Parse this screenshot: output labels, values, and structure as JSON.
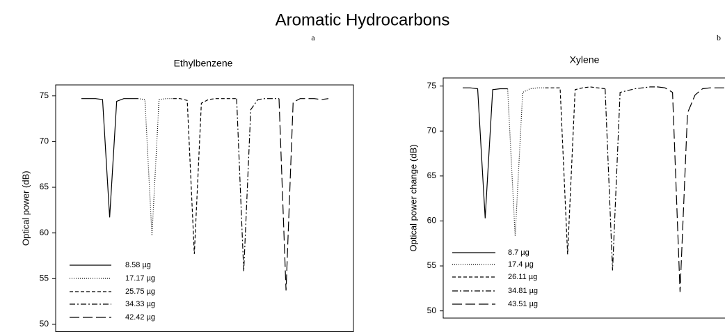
{
  "title": "Aromatic Hydrocarbons",
  "chart_data": [
    {
      "type": "line",
      "panel_label": "a",
      "title": "Ethylbenzene",
      "ylabel": "Optical power (dB)",
      "ylim": [
        49.2,
        76.2
      ],
      "yticks": [
        50,
        55,
        60,
        65,
        70,
        75
      ],
      "series": [
        {
          "name": "8.58 µg",
          "color": "#000000",
          "dash": "solid",
          "values": [
            74.7,
            74.7,
            74.7,
            74.6,
            61.7,
            74.4,
            74.7,
            74.7,
            74.7,
            null,
            null,
            null,
            null,
            null,
            null,
            null,
            null,
            null,
            null,
            null,
            null,
            null,
            null,
            null,
            null,
            null,
            null,
            null,
            null,
            null,
            null,
            null,
            null,
            null,
            null,
            null
          ]
        },
        {
          "name": "17.17 µg",
          "color": "#000000",
          "dash": "dotted",
          "values": [
            null,
            null,
            null,
            null,
            null,
            null,
            null,
            null,
            74.7,
            74.6,
            59.7,
            74.6,
            74.7,
            74.7,
            null,
            null,
            null,
            null,
            null,
            null,
            null,
            null,
            null,
            null,
            null,
            null,
            null,
            null,
            null,
            null,
            null,
            null,
            null,
            null,
            null,
            null
          ]
        },
        {
          "name": "25.75 µg",
          "color": "#000000",
          "dash": "dashed",
          "values": [
            null,
            null,
            null,
            null,
            null,
            null,
            null,
            null,
            null,
            null,
            null,
            null,
            null,
            74.7,
            74.7,
            74.5,
            57.7,
            74.2,
            74.6,
            74.7,
            74.7,
            74.7,
            74.7,
            null,
            null,
            null,
            null,
            null,
            null,
            null,
            null,
            null,
            null,
            null,
            null,
            null
          ]
        },
        {
          "name": "34.33 µg",
          "color": "#000000",
          "dash": "dashdot",
          "values": [
            null,
            null,
            null,
            null,
            null,
            null,
            null,
            null,
            null,
            null,
            null,
            null,
            null,
            null,
            null,
            null,
            null,
            null,
            null,
            null,
            null,
            null,
            74.7,
            55.8,
            73.5,
            74.6,
            74.7,
            74.7,
            74.7,
            null,
            null,
            null,
            null,
            null,
            null,
            null
          ]
        },
        {
          "name": "42.42 µg",
          "color": "#000000",
          "dash": "longdash",
          "values": [
            null,
            null,
            null,
            null,
            null,
            null,
            null,
            null,
            null,
            null,
            null,
            null,
            null,
            null,
            null,
            null,
            null,
            null,
            null,
            null,
            null,
            null,
            null,
            null,
            null,
            null,
            null,
            null,
            74.7,
            53.7,
            74.3,
            74.7,
            74.7,
            74.7,
            74.6,
            74.7
          ]
        }
      ]
    },
    {
      "type": "line",
      "panel_label": "b",
      "title": "Xylene",
      "ylabel": "Optical power change (dB)",
      "ylim": [
        49.2,
        75.9
      ],
      "yticks": [
        50,
        55,
        60,
        65,
        70,
        75
      ],
      "series": [
        {
          "name": "8.7 µg",
          "color": "#000000",
          "dash": "solid",
          "values": [
            74.8,
            74.8,
            74.7,
            60.3,
            74.6,
            74.7,
            74.7,
            null,
            null,
            null,
            null,
            null,
            null,
            null,
            null,
            null,
            null,
            null,
            null,
            null,
            null,
            null,
            null,
            null,
            null,
            null,
            null,
            null,
            null,
            null,
            null,
            null,
            null,
            null,
            null,
            null
          ]
        },
        {
          "name": "17.4 µg",
          "color": "#000000",
          "dash": "dotted",
          "values": [
            null,
            null,
            null,
            null,
            null,
            null,
            74.7,
            58.3,
            74.3,
            74.7,
            74.8,
            74.8,
            null,
            null,
            null,
            null,
            null,
            null,
            null,
            null,
            null,
            null,
            null,
            null,
            null,
            null,
            null,
            null,
            null,
            null,
            null,
            null,
            null,
            null,
            null,
            null
          ]
        },
        {
          "name": "26.11 µg",
          "color": "#000000",
          "dash": "dashed",
          "values": [
            null,
            null,
            null,
            null,
            null,
            null,
            null,
            null,
            null,
            null,
            null,
            74.8,
            74.8,
            74.8,
            56.3,
            74.6,
            74.8,
            74.9,
            74.8,
            74.7,
            null,
            null,
            null,
            null,
            null,
            null,
            null,
            null,
            null,
            null,
            null,
            null,
            null,
            null,
            null,
            null
          ]
        },
        {
          "name": "34.81 µg",
          "color": "#000000",
          "dash": "dashdot",
          "values": [
            null,
            null,
            null,
            null,
            null,
            null,
            null,
            null,
            null,
            null,
            null,
            null,
            null,
            null,
            null,
            null,
            null,
            null,
            null,
            74.7,
            54.5,
            74.3,
            74.5,
            74.7,
            74.8,
            74.9,
            74.9,
            null,
            null,
            null,
            null,
            null,
            null,
            null,
            null,
            null
          ]
        },
        {
          "name": "43.51 µg",
          "color": "#000000",
          "dash": "longdash",
          "values": [
            null,
            null,
            null,
            null,
            null,
            null,
            null,
            null,
            null,
            null,
            null,
            null,
            null,
            null,
            null,
            null,
            null,
            null,
            null,
            null,
            null,
            null,
            null,
            null,
            null,
            null,
            74.9,
            74.8,
            74.3,
            52.1,
            72.0,
            74.0,
            74.7,
            74.8,
            74.8,
            74.8
          ]
        }
      ]
    }
  ]
}
